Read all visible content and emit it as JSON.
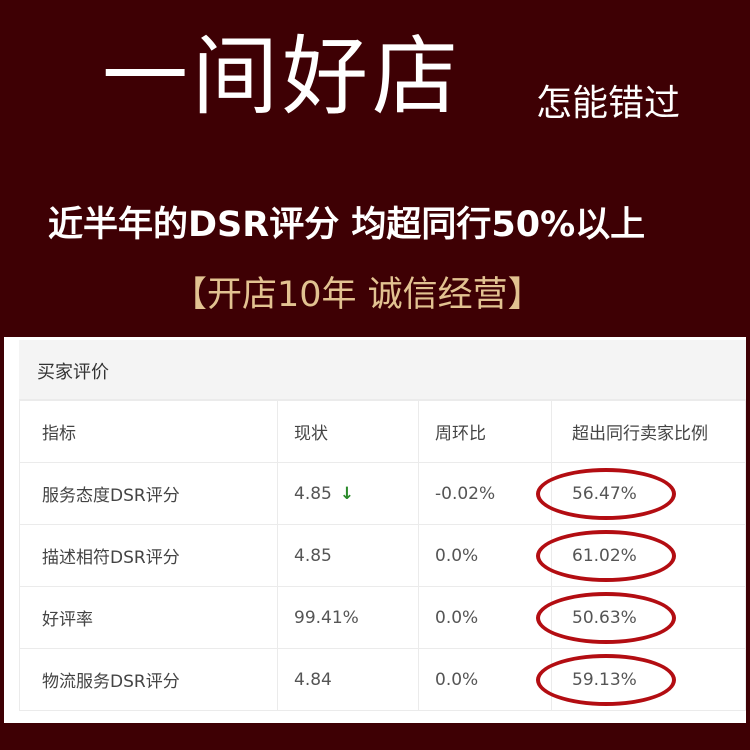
{
  "headline": {
    "main": "一间好店",
    "side": "怎能错过"
  },
  "subline": "近半年的DSR评分 均超同行50%以上",
  "tagline": "【开店10年 诚信经营】",
  "panel": {
    "title": "买家评价",
    "columns": [
      "指标",
      "现状",
      "周环比",
      "超出同行卖家比例"
    ],
    "rows": [
      {
        "metric": "服务态度DSR评分",
        "current": "4.85",
        "trend": "down",
        "trend_icon": "↓",
        "wow": "-0.02%",
        "exceed": "56.47%"
      },
      {
        "metric": "描述相符DSR评分",
        "current": "4.85",
        "wow": "0.0%",
        "exceed": "61.02%"
      },
      {
        "metric": "好评率",
        "current": "99.41%",
        "wow": "0.0%",
        "exceed": "50.63%"
      },
      {
        "metric": "物流服务DSR评分",
        "current": "4.84",
        "wow": "0.0%",
        "exceed": "59.13%"
      }
    ]
  },
  "colors": {
    "background": "#3e0004",
    "tagline": "#e2c291",
    "highlight_ring": "#b30d12",
    "trend_down": "#2a8a2a"
  }
}
